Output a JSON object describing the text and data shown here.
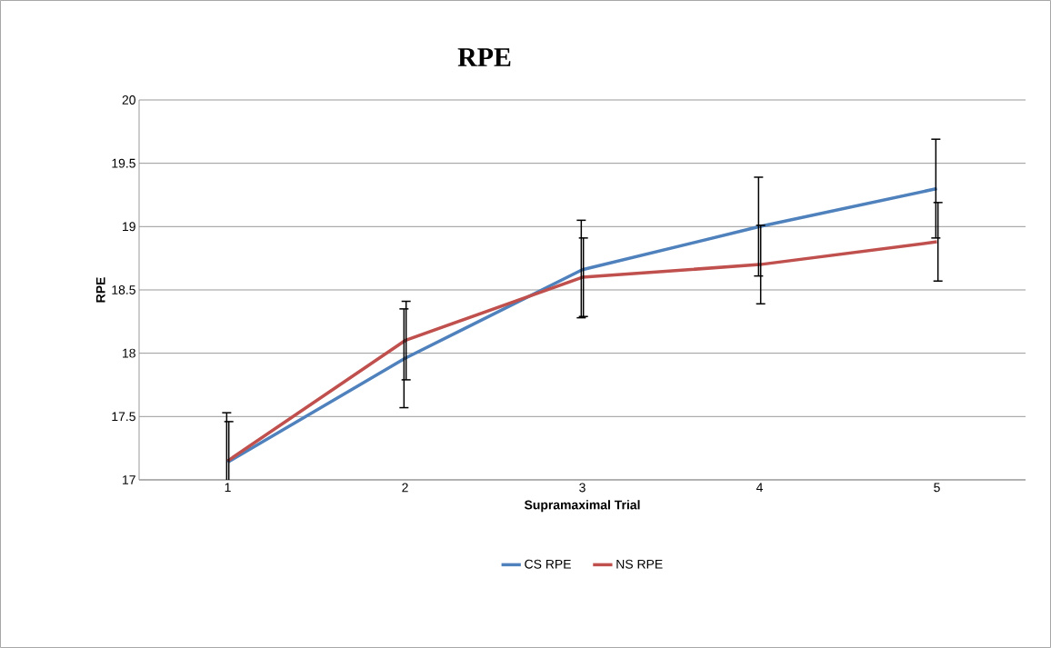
{
  "chart_data": {
    "type": "line",
    "title": "RPE",
    "xlabel": "Supramaximal Trial",
    "ylabel": "RPE",
    "categories": [
      "1",
      "2",
      "3",
      "4",
      "5"
    ],
    "series": [
      {
        "name": "CS RPE",
        "color": "#4f81bd",
        "values": [
          17.14,
          17.96,
          18.66,
          19.0,
          19.3
        ],
        "errors": [
          [
            17,
            17.53
          ],
          [
            17.57,
            18.35
          ],
          [
            18.28,
            19.05
          ],
          [
            18.61,
            19.39
          ],
          [
            18.91,
            19.69
          ]
        ]
      },
      {
        "name": "NS RPE",
        "color": "#c0504d",
        "values": [
          17.15,
          18.1,
          18.6,
          18.7,
          18.88
        ],
        "errors": [
          [
            17,
            17.46
          ],
          [
            17.79,
            18.41
          ],
          [
            18.29,
            18.91
          ],
          [
            18.39,
            19.01
          ],
          [
            18.57,
            19.19
          ]
        ]
      }
    ],
    "ylim": [
      17,
      20
    ],
    "yticks": [
      17,
      17.5,
      18,
      18.5,
      19,
      19.5,
      20
    ],
    "grid": "y",
    "legend": "bottom",
    "marker": "none",
    "line_style": "solid"
  }
}
